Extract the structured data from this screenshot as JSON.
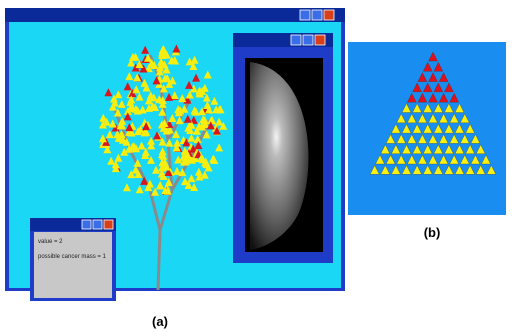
{
  "panel_a": {
    "caption": "(a)",
    "dialog": {
      "lines": [
        "value = 2",
        "possible cancer mass = 1"
      ]
    }
  },
  "panel_b": {
    "caption": "(b)"
  }
}
